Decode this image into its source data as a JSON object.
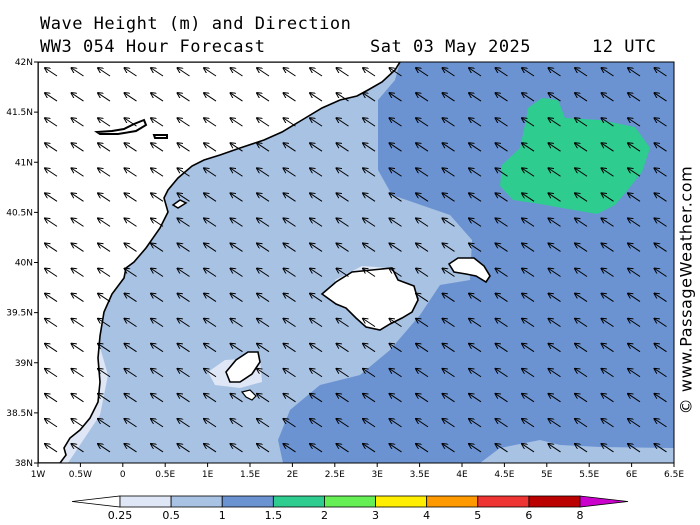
{
  "header": {
    "line1": "Wave Height (m) and Direction",
    "line2": "WW3 054 Hour Forecast",
    "date": "Sat 03 May 2025",
    "time": "12 UTC"
  },
  "axes": {
    "lon_labels": [
      "1W",
      "0.5W",
      "0",
      "0.5E",
      "1E",
      "1.5E",
      "2E",
      "2.5E",
      "3E",
      "3.5E",
      "4E",
      "4.5E",
      "5E",
      "5.5E",
      "6E",
      "6.5E"
    ],
    "lat_labels": [
      "42N",
      "41.5N",
      "41N",
      "40.5N",
      "40N",
      "39.5N",
      "39N",
      "38.5N",
      "38N"
    ]
  },
  "legend": {
    "tick_labels": [
      "0.25",
      "0.5",
      "1",
      "1.5",
      "2",
      "3",
      "4",
      "5",
      "6",
      "8"
    ],
    "colors": [
      "#ffffff",
      "#dfe6f5",
      "#a8c2e4",
      "#6b93d2",
      "#2ecc8f",
      "#66ee55",
      "#ffee00",
      "#ff9900",
      "#ee3333",
      "#bb0000",
      "#cc00cc"
    ]
  },
  "credit": "© www.PassageWeather.com",
  "map_colors": {
    "land": "#ffffff",
    "sea_lightest": "#dfe6f5",
    "sea_light": "#a8c2e4",
    "sea_mid": "#6b93d2",
    "sea_high": "#2ecc8f"
  },
  "wave_direction": "toward north-west"
}
